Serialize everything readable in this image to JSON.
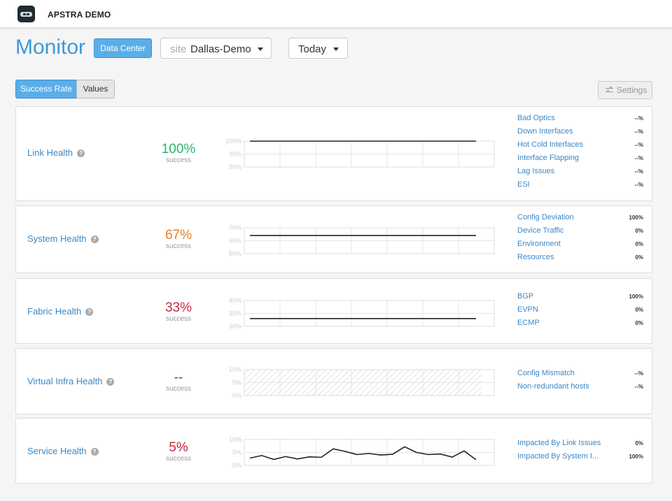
{
  "app": {
    "name": "APSTRA DEMO"
  },
  "header": {
    "title": "Monitor",
    "scope_button": "Data Center",
    "site_prefix": "site",
    "site_value": "Dallas-Demo",
    "range_value": "Today"
  },
  "toolbar": {
    "success_rate": "Success Rate",
    "values": "Values",
    "settings": "Settings"
  },
  "colors": {
    "accent": "#3b9ad9",
    "good": "#2ab36a",
    "warn": "#e8812c",
    "bad": "#c8283f"
  },
  "cards": [
    {
      "name": "Link Health",
      "help": "?",
      "pct": "100%",
      "pct_color": "#2ab36a",
      "pct_label": "success",
      "metrics": [
        {
          "label": "Bad Optics",
          "value": "--%"
        },
        {
          "label": "Down Interfaces",
          "value": "--%"
        },
        {
          "label": "Hot Cold Interfaces",
          "value": "--%"
        },
        {
          "label": "Interface Flapping",
          "value": "--%"
        },
        {
          "label": "Lag Issues",
          "value": "--%"
        },
        {
          "label": "ESI",
          "value": "--%"
        }
      ],
      "chart_data": {
        "type": "line",
        "y_ticks": [
          "100%",
          "95%",
          "90%"
        ],
        "ylim": [
          90,
          100
        ],
        "values": [
          100,
          100,
          100,
          100,
          100,
          100,
          100,
          100,
          100,
          100,
          100,
          100,
          100,
          100,
          100,
          100,
          100,
          100,
          100,
          100
        ]
      }
    },
    {
      "name": "System Health",
      "help": "?",
      "pct": "67%",
      "pct_color": "#e8812c",
      "pct_label": "success",
      "metrics": [
        {
          "label": "Config Deviation",
          "value": "100%"
        },
        {
          "label": "Device Traffic",
          "value": "0%"
        },
        {
          "label": "Environment",
          "value": "0%"
        },
        {
          "label": "Resources",
          "value": "0%"
        }
      ],
      "chart_data": {
        "type": "line",
        "y_ticks": [
          "70%",
          "65%",
          "60%"
        ],
        "ylim": [
          60,
          70
        ],
        "values": [
          67,
          67,
          67,
          67,
          67,
          67,
          67,
          67,
          67,
          67,
          67,
          67,
          67,
          67,
          67,
          67,
          67,
          67,
          67,
          67
        ]
      }
    },
    {
      "name": "Fabric Health",
      "help": "?",
      "pct": "33%",
      "pct_color": "#c8283f",
      "pct_label": "success",
      "metrics": [
        {
          "label": "BGP",
          "value": "100%"
        },
        {
          "label": "EVPN",
          "value": "0%"
        },
        {
          "label": "ECMP",
          "value": "0%"
        }
      ],
      "chart_data": {
        "type": "line",
        "y_ticks": [
          "40%",
          "35%",
          "30%"
        ],
        "ylim": [
          30,
          40
        ],
        "values": [
          33,
          33,
          33,
          33,
          33,
          33,
          33,
          33,
          33,
          33,
          33,
          33,
          33,
          33,
          33,
          33,
          33,
          33,
          33,
          33
        ]
      }
    },
    {
      "name": "Virtual Infra Health",
      "help": "?",
      "pct": "--",
      "pct_color": "#555555",
      "pct_label": "success",
      "metrics": [
        {
          "label": "Config Mismatch",
          "value": "--%"
        },
        {
          "label": "Non-redundant hosts",
          "value": "--%"
        }
      ],
      "chart_data": {
        "type": "line",
        "y_ticks": [
          "10%",
          "5%",
          "0%"
        ],
        "ylim": [
          0,
          10
        ],
        "no_data": true,
        "values": []
      }
    },
    {
      "name": "Service Health",
      "help": "?",
      "pct": "5%",
      "pct_color": "#c8283f",
      "pct_label": "success",
      "metrics": [
        {
          "label": "Impacted By Link Issues",
          "value": "0%"
        },
        {
          "label": "Impacted By System I...",
          "value": "100%"
        }
      ],
      "chart_data": {
        "type": "line",
        "y_ticks": [
          "10%",
          "5%",
          "0%"
        ],
        "ylim": [
          0,
          10
        ],
        "values": [
          2.8,
          3.8,
          2.3,
          3.4,
          2.5,
          3.3,
          3.1,
          6.4,
          5.4,
          4.2,
          4.6,
          4.0,
          4.3,
          7.2,
          5.0,
          4.2,
          4.4,
          3.2,
          5.6,
          2.2
        ]
      }
    }
  ]
}
